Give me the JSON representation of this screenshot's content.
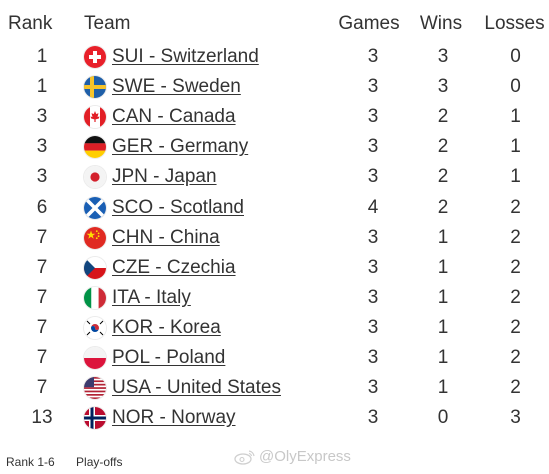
{
  "headers": {
    "rank": "Rank",
    "team": "Team",
    "games": "Games",
    "wins": "Wins",
    "losses": "Losses"
  },
  "rows": [
    {
      "rank": "1",
      "team": "SUI - Switzerland",
      "flag": "switzerland-flag-icon",
      "games": "3",
      "wins": "3",
      "losses": "0"
    },
    {
      "rank": "1",
      "team": "SWE - Sweden",
      "flag": "sweden-flag-icon",
      "games": "3",
      "wins": "3",
      "losses": "0"
    },
    {
      "rank": "3",
      "team": "CAN - Canada",
      "flag": "canada-flag-icon",
      "games": "3",
      "wins": "2",
      "losses": "1"
    },
    {
      "rank": "3",
      "team": "GER - Germany",
      "flag": "germany-flag-icon",
      "games": "3",
      "wins": "2",
      "losses": "1"
    },
    {
      "rank": "3",
      "team": "JPN - Japan",
      "flag": "japan-flag-icon",
      "games": "3",
      "wins": "2",
      "losses": "1"
    },
    {
      "rank": "6",
      "team": "SCO - Scotland",
      "flag": "scotland-flag-icon",
      "games": "4",
      "wins": "2",
      "losses": "2"
    },
    {
      "rank": "7",
      "team": "CHN - China",
      "flag": "china-flag-icon",
      "games": "3",
      "wins": "1",
      "losses": "2"
    },
    {
      "rank": "7",
      "team": "CZE - Czechia",
      "flag": "czechia-flag-icon",
      "games": "3",
      "wins": "1",
      "losses": "2"
    },
    {
      "rank": "7",
      "team": "ITA - Italy",
      "flag": "italy-flag-icon",
      "games": "3",
      "wins": "1",
      "losses": "2"
    },
    {
      "rank": "7",
      "team": "KOR - Korea",
      "flag": "korea-flag-icon",
      "games": "3",
      "wins": "1",
      "losses": "2"
    },
    {
      "rank": "7",
      "team": "POL - Poland",
      "flag": "poland-flag-icon",
      "games": "3",
      "wins": "1",
      "losses": "2"
    },
    {
      "rank": "7",
      "team": "USA - United States",
      "flag": "usa-flag-icon",
      "games": "3",
      "wins": "1",
      "losses": "2"
    },
    {
      "rank": "13",
      "team": "NOR - Norway",
      "flag": "norway-flag-icon",
      "games": "3",
      "wins": "0",
      "losses": "3"
    }
  ],
  "legend": {
    "range": "Rank 1-6",
    "label": "Play-offs"
  },
  "watermark": {
    "text": "@OlyExpress",
    "icon": "weibo-logo-icon"
  },
  "colors": {
    "text": "#333333",
    "background": "#ffffff",
    "watermark": "#c8c8c8"
  }
}
